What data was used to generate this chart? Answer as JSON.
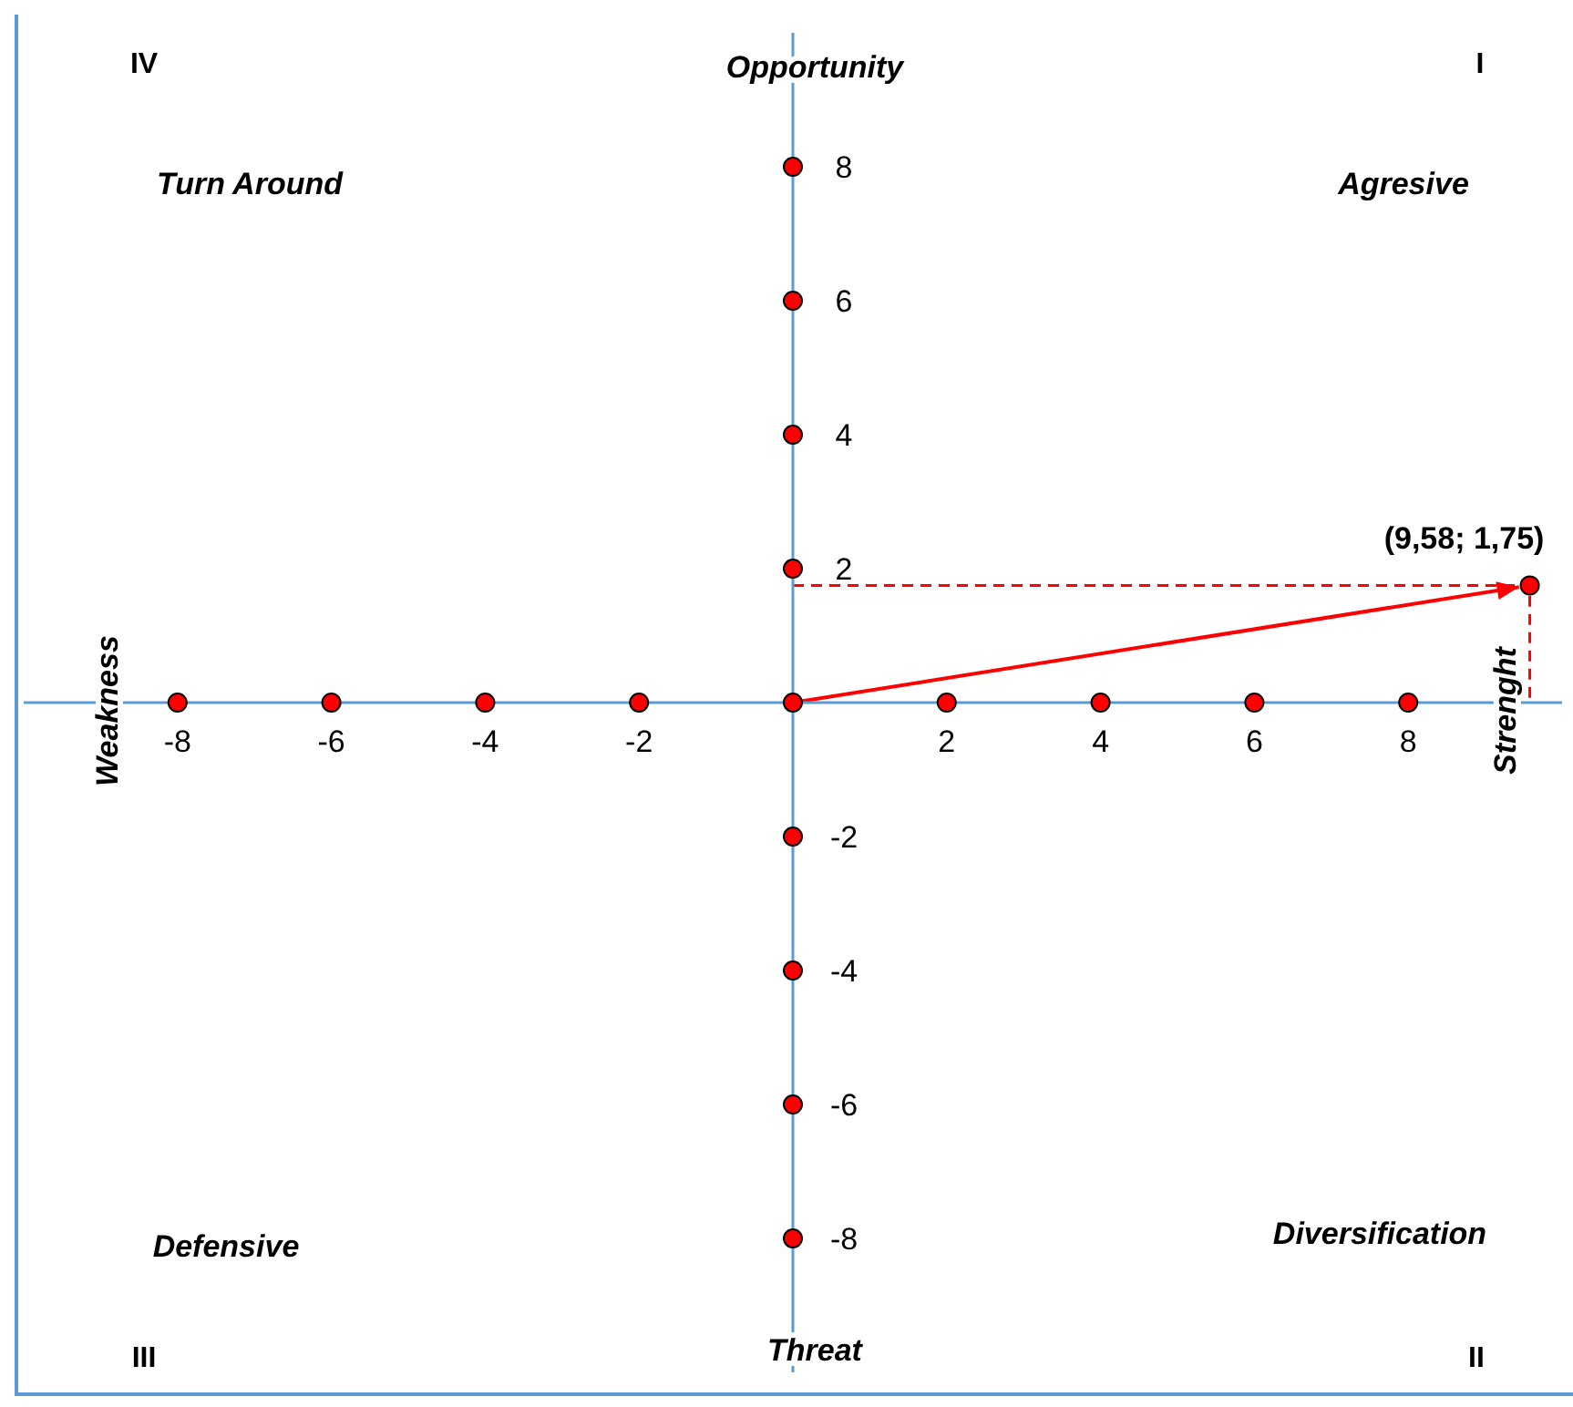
{
  "chart_data": {
    "type": "scatter",
    "xlim": [
      -10,
      10
    ],
    "ylim": [
      -10,
      10
    ],
    "xticks": [
      -8,
      -6,
      -4,
      -2,
      2,
      4,
      6,
      8
    ],
    "yticks": [
      -8,
      -6,
      -4,
      -2,
      2,
      4,
      6,
      8
    ],
    "grid": false,
    "legend": false,
    "marker": "circle",
    "series": [
      {
        "color": "#ff0000",
        "x": [
          -8,
          -6,
          -4,
          -2,
          0,
          2,
          4,
          6,
          8,
          0,
          0,
          0,
          0,
          0,
          0,
          0,
          0
        ],
        "values": [
          0,
          0,
          0,
          0,
          0,
          0,
          0,
          0,
          0,
          8,
          6,
          4,
          2,
          -2,
          -4,
          -6,
          -8
        ]
      },
      {
        "color": "#ff0000",
        "x": [
          9.58
        ],
        "values": [
          1.75
        ]
      }
    ],
    "annotations": [
      "IV",
      "Opportunity",
      "I",
      "Turn Around",
      "Agresive",
      "Weakness",
      "Strenght",
      "Defensive",
      "Diversification",
      "III",
      "Threat",
      "II",
      {
        "text": "(9,58; 1,75)",
        "x": 9.58,
        "y": 1.75
      }
    ]
  }
}
